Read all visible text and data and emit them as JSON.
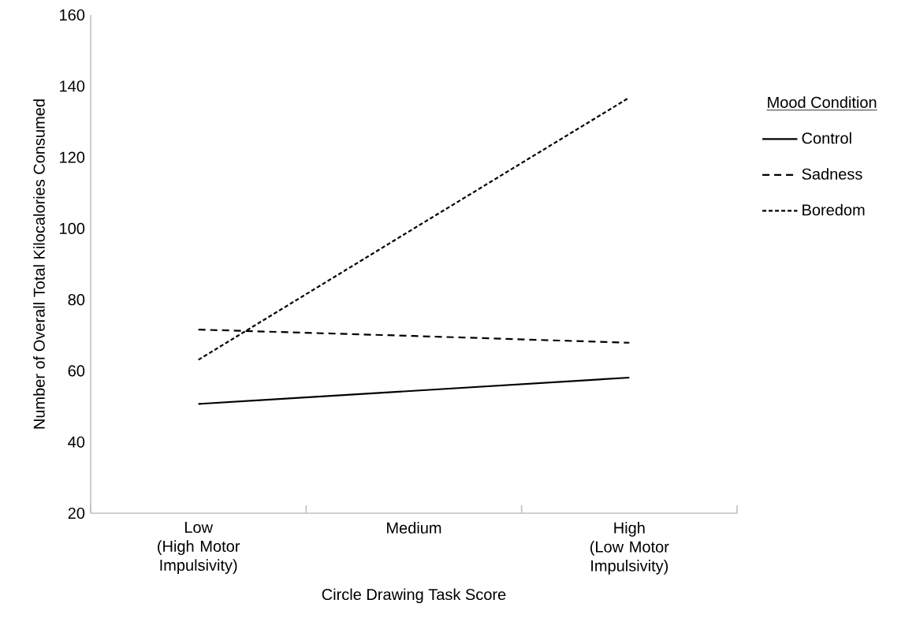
{
  "chart_data": {
    "type": "line",
    "xlabel": "Circle Drawing Task Score",
    "ylabel": "Number of Overall Total Kilocalories Consumed",
    "legend_title": "Mood Condition",
    "categories": [
      "Low\n(High Motor\nImpulsivity)",
      "Medium",
      "High\n(Low Motor\nImpulsivity)"
    ],
    "ylim": [
      20,
      160
    ],
    "yticks": [
      20,
      40,
      60,
      80,
      100,
      120,
      140,
      160
    ],
    "grid": false,
    "legend": "right",
    "marker": "none",
    "series": [
      {
        "name": "Control",
        "color": "#000000",
        "line_style": "solid",
        "values": [
          50.7,
          54.4,
          58.1
        ]
      },
      {
        "name": "Sadness",
        "color": "#000000",
        "line_style": "dashed",
        "values": [
          71.6,
          69.8,
          67.9
        ]
      },
      {
        "name": "Boredom",
        "color": "#000000",
        "line_style": "dotted",
        "values": [
          63.1,
          100.0,
          136.8
        ]
      }
    ]
  }
}
